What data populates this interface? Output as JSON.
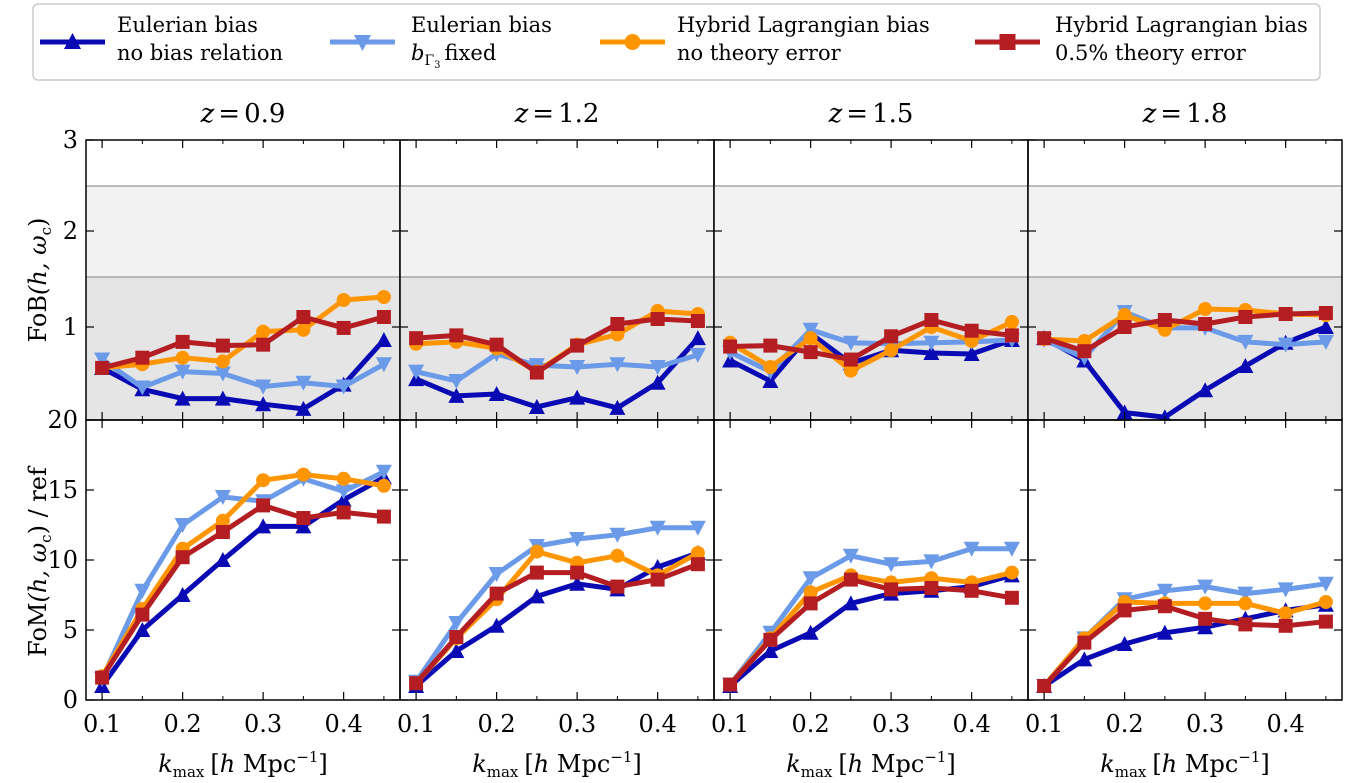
{
  "legend": [
    {
      "line1": "Eulerian bias",
      "line2": "no bias relation",
      "color": "#0a0ab4",
      "marker": "triangle-up"
    },
    {
      "line1": "Eulerian bias",
      "line2": "fixed",
      "line2_prefix": "b",
      "line2_sub": "Γ",
      "line2_subsub": "3",
      "color": "#6a9ae8",
      "marker": "triangle-down"
    },
    {
      "line1": "Hybrid Lagrangian bias",
      "line2": "no theory error",
      "color": "#ff9500",
      "marker": "circle"
    },
    {
      "line1": "Hybrid Lagrangian bias",
      "line2": "0.5% theory error",
      "color": "#b41e23",
      "marker": "square"
    }
  ],
  "panel_titles": [
    {
      "var": "z",
      "eq": "=",
      "val": "0.9"
    },
    {
      "var": "z",
      "eq": "=",
      "val": "1.2"
    },
    {
      "var": "z",
      "eq": "=",
      "val": "1.5"
    },
    {
      "var": "z",
      "eq": "=",
      "val": "1.8"
    }
  ],
  "ylabel_top": {
    "main": "FoB",
    "args": "(h, ω",
    "sub": "c",
    "close": ")"
  },
  "ylabel_bottom": {
    "main": "FoM",
    "args": "(h, ω",
    "sub": "c",
    "close": ")",
    "suffix": " / ref"
  },
  "xlabel": {
    "k": "k",
    "sub": "max",
    "unit_open": "[",
    "h": "h",
    "unit": " Mpc",
    "exp": "−1",
    "unit_close": "]"
  },
  "colors": {
    "band_outer": "#f2f2f2",
    "band_inner": "#e5e5e5",
    "band_line": "#999999"
  },
  "chart_data": [
    {
      "type": "line",
      "name": "FoB",
      "ylim": [
        0,
        3
      ],
      "yscale": "custom-stretched: 1 shown at half height",
      "yticks": [
        "3",
        "2",
        "1"
      ],
      "bands": [
        [
          0,
          1.5
        ],
        [
          1.5,
          2.5
        ]
      ],
      "xlim": [
        0.08,
        0.47
      ],
      "xticks": [
        "0.1",
        "0.2",
        "0.3",
        "0.4"
      ],
      "x": [
        0.1,
        0.15,
        0.2,
        0.25,
        0.3,
        0.35,
        0.4,
        0.45
      ],
      "panels": [
        {
          "series": [
            {
              "values": [
                0.56,
                0.33,
                0.23,
                0.23,
                0.17,
                0.12,
                0.38,
                0.86
              ]
            },
            {
              "values": [
                0.65,
                0.35,
                0.52,
                0.5,
                0.36,
                0.4,
                0.36,
                0.6
              ]
            },
            {
              "values": [
                0.56,
                0.6,
                0.67,
                0.63,
                0.95,
                0.97,
                1.27,
                1.3
              ]
            },
            {
              "values": [
                0.56,
                0.67,
                0.84,
                0.8,
                0.81,
                1.1,
                0.99,
                1.1
              ]
            }
          ]
        },
        {
          "series": [
            {
              "values": [
                0.44,
                0.26,
                0.28,
                0.14,
                0.24,
                0.13,
                0.4,
                0.88
              ]
            },
            {
              "values": [
                0.52,
                0.42,
                0.71,
                0.59,
                0.57,
                0.6,
                0.57,
                0.7
              ]
            },
            {
              "values": [
                0.82,
                0.84,
                0.77,
                0.52,
                0.81,
                0.92,
                1.16,
                1.13
              ]
            },
            {
              "values": [
                0.88,
                0.91,
                0.81,
                0.51,
                0.8,
                1.03,
                1.08,
                1.06
              ]
            }
          ]
        },
        {
          "series": [
            {
              "values": [
                0.64,
                0.42,
                0.93,
                0.61,
                0.75,
                0.72,
                0.71,
                0.86
              ]
            },
            {
              "values": [
                0.73,
                0.52,
                0.97,
                0.83,
                0.82,
                0.83,
                0.84,
                0.86
              ]
            },
            {
              "values": [
                0.83,
                0.57,
                0.88,
                0.53,
                0.75,
                1.0,
                0.85,
                1.05
              ]
            },
            {
              "values": [
                0.79,
                0.8,
                0.73,
                0.65,
                0.9,
                1.07,
                0.96,
                0.91
              ]
            }
          ]
        },
        {
          "series": [
            {
              "values": [
                0.88,
                0.64,
                0.08,
                0.03,
                0.32,
                0.58,
                0.83,
                1.0
              ]
            },
            {
              "values": [
                0.86,
                0.67,
                1.15,
                0.99,
                0.99,
                0.84,
                0.81,
                0.84
              ]
            },
            {
              "values": [
                0.87,
                0.85,
                1.12,
                0.97,
                1.18,
                1.17,
                1.13,
                1.12
              ]
            },
            {
              "values": [
                0.88,
                0.74,
                1.0,
                1.07,
                1.03,
                1.1,
                1.13,
                1.14
              ]
            }
          ]
        }
      ]
    },
    {
      "type": "line",
      "name": "FoM / ref",
      "ylim": [
        0,
        20
      ],
      "yticks": [
        "20",
        "15",
        "10",
        "5",
        "0"
      ],
      "xlim": [
        0.08,
        0.47
      ],
      "xticks": [
        "0.1",
        "0.2",
        "0.3",
        "0.4"
      ],
      "x": [
        0.1,
        0.15,
        0.2,
        0.25,
        0.3,
        0.35,
        0.4,
        0.45
      ],
      "panels": [
        {
          "series": [
            {
              "values": [
                1.0,
                5.0,
                7.5,
                10.0,
                12.4,
                12.4,
                14.3,
                15.9
              ]
            },
            {
              "values": [
                1.5,
                7.8,
                12.5,
                14.5,
                14.2,
                15.8,
                14.9,
                16.3
              ]
            },
            {
              "values": [
                1.7,
                6.5,
                10.8,
                12.8,
                15.7,
                16.1,
                15.8,
                15.3
              ]
            },
            {
              "values": [
                1.6,
                6.1,
                10.2,
                12.0,
                13.9,
                13.0,
                13.4,
                13.1
              ]
            }
          ]
        },
        {
          "series": [
            {
              "values": [
                1.0,
                3.5,
                5.3,
                7.4,
                8.3,
                7.9,
                9.5,
                10.5
              ]
            },
            {
              "values": [
                1.3,
                5.5,
                9.0,
                11.0,
                11.5,
                11.8,
                12.3,
                12.3
              ]
            },
            {
              "values": [
                1.2,
                4.4,
                7.2,
                10.6,
                9.8,
                10.3,
                8.9,
                10.5
              ]
            },
            {
              "values": [
                1.2,
                4.5,
                7.6,
                9.1,
                9.1,
                8.1,
                8.6,
                9.7
              ]
            }
          ]
        },
        {
          "series": [
            {
              "values": [
                1.0,
                3.5,
                4.8,
                6.9,
                7.6,
                7.8,
                8.1,
                8.9
              ]
            },
            {
              "values": [
                1.1,
                4.8,
                8.7,
                10.3,
                9.7,
                9.9,
                10.8,
                10.8
              ]
            },
            {
              "values": [
                1.1,
                4.4,
                7.7,
                8.9,
                8.4,
                8.7,
                8.4,
                9.1
              ]
            },
            {
              "values": [
                1.1,
                4.3,
                6.9,
                8.6,
                7.9,
                8.0,
                7.8,
                7.3
              ]
            }
          ]
        },
        {
          "series": [
            {
              "values": [
                1.0,
                2.9,
                4.0,
                4.8,
                5.2,
                5.8,
                6.4,
                6.8
              ]
            },
            {
              "values": [
                1.0,
                4.4,
                7.2,
                7.8,
                8.1,
                7.6,
                7.9,
                8.3
              ]
            },
            {
              "values": [
                1.0,
                4.4,
                7.0,
                6.9,
                6.9,
                6.9,
                6.2,
                7.0
              ]
            },
            {
              "values": [
                1.0,
                4.1,
                6.4,
                6.7,
                5.8,
                5.4,
                5.3,
                5.6
              ]
            }
          ]
        }
      ]
    }
  ]
}
